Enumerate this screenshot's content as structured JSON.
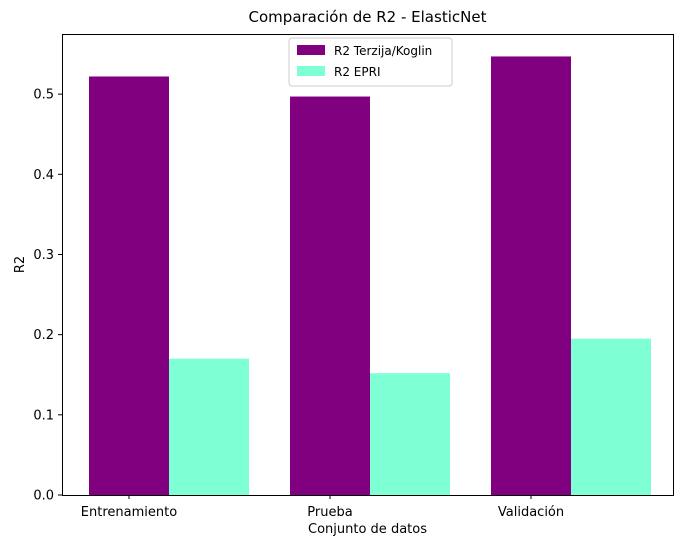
{
  "chart_data": {
    "type": "bar",
    "title": "Comparación de R2 - ElasticNet",
    "xlabel": "Conjunto de datos",
    "ylabel": "R2",
    "categories": [
      "Entrenamiento",
      "Prueba",
      "Validación"
    ],
    "series": [
      {
        "name": "R2 Terzija/Koglin",
        "color": "#800080",
        "values": [
          0.522,
          0.497,
          0.547
        ]
      },
      {
        "name": "R2 EPRI",
        "color": "#7fffd4",
        "values": [
          0.17,
          0.152,
          0.195
        ]
      }
    ],
    "ylim": [
      0,
      0.575
    ],
    "yticks": [
      "0.0",
      "0.1",
      "0.2",
      "0.3",
      "0.4",
      "0.5"
    ],
    "grid": false,
    "legend_position": "top-center"
  }
}
